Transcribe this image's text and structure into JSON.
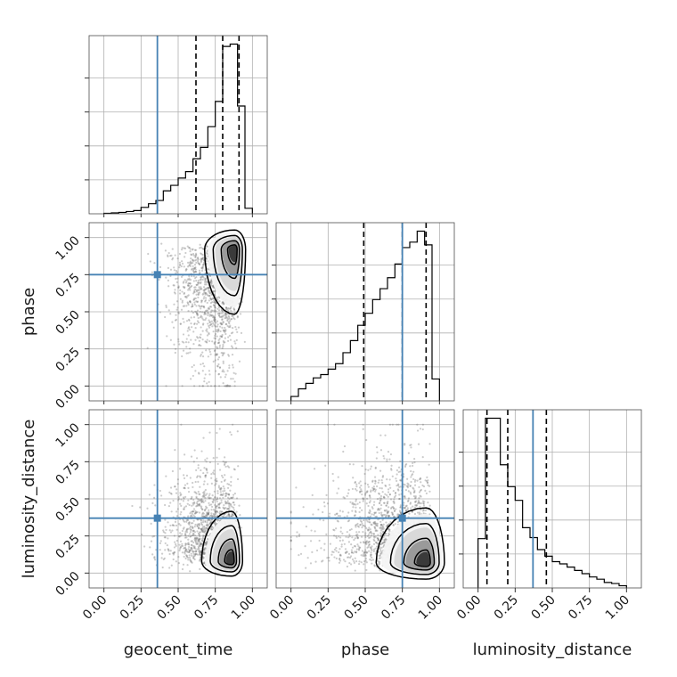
{
  "chart_data": {
    "type": "corner",
    "parameters": [
      "geocent_time",
      "phase",
      "luminosity_distance"
    ],
    "axis_labels": {
      "geocent_time": "geocent_time",
      "phase": "phase",
      "luminosity_distance": "luminosity_distance"
    },
    "range": [
      -0.1,
      1.1
    ],
    "ticks": [
      0.0,
      0.25,
      0.5,
      0.75,
      1.0
    ],
    "tick_labels": [
      "0.00",
      "0.25",
      "0.50",
      "0.75",
      "1.00"
    ],
    "grid": true,
    "truths": {
      "geocent_time": 0.36,
      "phase": 0.75,
      "luminosity_distance": 0.37
    },
    "truth_color": "#4682b4",
    "line_color": "#000000",
    "quantiles": {
      "geocent_time": [
        0.62,
        0.8,
        0.91
      ],
      "phase": [
        0.49,
        0.75,
        0.91
      ],
      "luminosity_distance": [
        0.06,
        0.2,
        0.46
      ]
    },
    "histograms": {
      "geocent_time": {
        "edges": [
          0.0,
          0.05,
          0.1,
          0.15,
          0.2,
          0.25,
          0.3,
          0.35,
          0.4,
          0.45,
          0.5,
          0.55,
          0.6,
          0.65,
          0.7,
          0.75,
          0.8,
          0.85,
          0.9,
          0.95,
          1.0
        ],
        "counts": [
          1,
          2,
          3,
          5,
          7,
          14,
          22,
          29,
          50,
          62,
          78,
          92,
          120,
          145,
          190,
          245,
          365,
          370,
          235,
          12
        ]
      },
      "phase": {
        "edges": [
          0.0,
          0.05,
          0.1,
          0.15,
          0.2,
          0.25,
          0.3,
          0.35,
          0.4,
          0.45,
          0.5,
          0.55,
          0.6,
          0.65,
          0.7,
          0.75,
          0.8,
          0.85,
          0.9,
          0.95,
          1.0
        ],
        "counts": [
          8,
          22,
          32,
          42,
          48,
          58,
          68,
          88,
          110,
          138,
          160,
          185,
          205,
          225,
          250,
          280,
          290,
          310,
          285,
          40
        ]
      },
      "luminosity_distance": {
        "edges": [
          0.0,
          0.05,
          0.1,
          0.15,
          0.2,
          0.25,
          0.3,
          0.35,
          0.4,
          0.45,
          0.5,
          0.55,
          0.6,
          0.65,
          0.7,
          0.75,
          0.8,
          0.85,
          0.9,
          0.95,
          1.0
        ],
        "counts": [
          90,
          310,
          310,
          225,
          185,
          160,
          110,
          92,
          70,
          58,
          48,
          44,
          38,
          32,
          26,
          20,
          16,
          10,
          8,
          4
        ]
      }
    },
    "pairs": [
      {
        "x": "geocent_time",
        "y": "phase",
        "density_peak": [
          0.88,
          0.92
        ],
        "spread": [
          0.12,
          0.26
        ]
      },
      {
        "x": "geocent_time",
        "y": "luminosity_distance",
        "density_peak": [
          0.86,
          0.08
        ],
        "spread": [
          0.12,
          0.2
        ]
      },
      {
        "x": "phase",
        "y": "luminosity_distance",
        "density_peak": [
          0.91,
          0.07
        ],
        "spread": [
          0.2,
          0.22
        ]
      }
    ]
  }
}
